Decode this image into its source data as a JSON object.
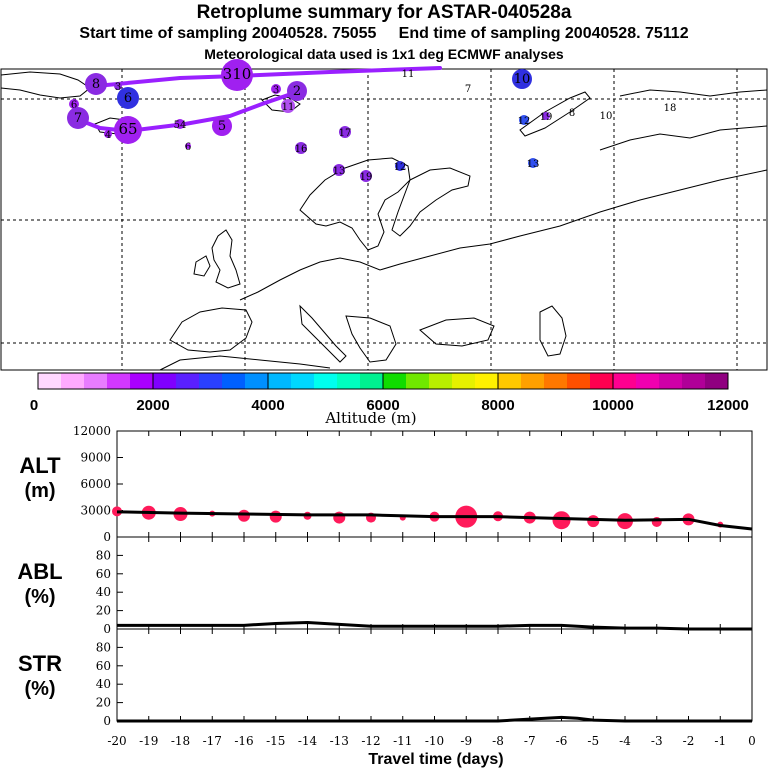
{
  "header": {
    "title": "Retroplume summary for ASTAR-040528a",
    "sampling": "Start time of sampling 20040528. 75055     End time of sampling 20040528. 75112",
    "meteo": "Meteorological data used is 1x1 deg ECMWF analyses"
  },
  "colorbar": {
    "label": "Altitude (m)",
    "ticks": [
      "0",
      "2000",
      "4000",
      "6000",
      "8000",
      "10000",
      "12000"
    ],
    "colors": [
      "#ffd8ff",
      "#ffaaff",
      "#e87cff",
      "#d238ff",
      "#aa00ff",
      "#8000ff",
      "#5a20ff",
      "#2a40ff",
      "#0060ff",
      "#0090ff",
      "#00b8ff",
      "#00d8ff",
      "#00ffee",
      "#00ffc0",
      "#00f090",
      "#10dc00",
      "#70e800",
      "#b8ef00",
      "#e6f000",
      "#fff000",
      "#ffc800",
      "#ffa000",
      "#ff7800",
      "#ff5000",
      "#ff0050",
      "#ff0090",
      "#f000b0",
      "#d000a8",
      "#b00098",
      "#900080"
    ]
  },
  "map": {
    "track_color": "#9a20ff",
    "points": [
      {
        "label": "8",
        "size": 11,
        "color": "#8a2be2"
      },
      {
        "label": "3",
        "size": 4,
        "color": "#8a2be2"
      },
      {
        "label": "6",
        "size": 11,
        "color": "#3030e0"
      },
      {
        "label": "310",
        "size": 16,
        "color": "#a020f0"
      },
      {
        "label": "11",
        "size": 0,
        "color": "#000000"
      },
      {
        "label": "10",
        "size": 10,
        "color": "#3030e0"
      },
      {
        "label": "7",
        "size": 0,
        "color": "#000000"
      },
      {
        "label": "6",
        "size": 5,
        "color": "#a020f0"
      },
      {
        "label": "4",
        "size": 4,
        "color": "#a020f0"
      },
      {
        "label": "7",
        "size": 11,
        "color": "#8a2be2"
      },
      {
        "label": "65",
        "size": 14,
        "color": "#a020f0"
      },
      {
        "label": "54",
        "size": 5,
        "color": "#a020f0"
      },
      {
        "label": "5",
        "size": 10,
        "color": "#a020f0"
      },
      {
        "label": "2",
        "size": 10,
        "color": "#8a2be2"
      },
      {
        "label": "3",
        "size": 5,
        "color": "#a020f0"
      },
      {
        "label": "11",
        "size": 7,
        "color": "#b050f0"
      },
      {
        "label": "17",
        "size": 6,
        "color": "#8a2be2"
      },
      {
        "label": "16",
        "size": 6,
        "color": "#8a2be2"
      },
      {
        "label": "13",
        "size": 6,
        "color": "#8a2be2"
      },
      {
        "label": "19",
        "size": 6,
        "color": "#8a2be2"
      },
      {
        "label": "12",
        "size": 5,
        "color": "#3030e0"
      },
      {
        "label": "13",
        "size": 5,
        "color": "#3050f0"
      },
      {
        "label": "8",
        "size": 0,
        "color": "#000000"
      },
      {
        "label": "10",
        "size": 0,
        "color": "#000000"
      },
      {
        "label": "18",
        "size": 0,
        "color": "#000000"
      },
      {
        "label": "12",
        "size": 5,
        "color": "#3050f0"
      },
      {
        "label": "19",
        "size": 4,
        "color": "#8a2be2"
      },
      {
        "label": "6",
        "size": 3,
        "color": "#a020f0"
      }
    ]
  },
  "chart_data": [
    {
      "type": "scatter",
      "title": "ALT (m)",
      "ylabel_line1": "ALT",
      "ylabel_line2": "(m)",
      "xlabel": "Travel time (days)",
      "x": [
        -20,
        -19,
        -18,
        -17,
        -16,
        -15,
        -14,
        -13,
        -12,
        -11,
        -10,
        -9,
        -8,
        -7,
        -6,
        -5,
        -4,
        -3,
        -2,
        -1
      ],
      "values": [
        2900,
        2750,
        2600,
        2650,
        2400,
        2300,
        2400,
        2200,
        2200,
        2200,
        2300,
        2300,
        2350,
        2200,
        1900,
        1800,
        1800,
        1700,
        2000,
        1400
      ],
      "sizes": [
        5,
        7,
        7,
        3,
        6,
        6,
        4,
        6,
        5,
        3,
        5,
        11,
        5,
        6,
        9,
        6,
        8,
        5,
        6,
        3
      ],
      "mean_line": {
        "x": [
          -20,
          -18,
          -16,
          -14,
          -12,
          -10,
          -8,
          -6,
          -4,
          -2,
          -1,
          0
        ],
        "values": [
          2850,
          2700,
          2600,
          2500,
          2500,
          2300,
          2300,
          2100,
          1900,
          2000,
          1300,
          900
        ]
      },
      "yticks": [
        "0",
        "3000",
        "6000",
        "9000",
        "12000"
      ],
      "ylim": [
        0,
        12000
      ],
      "xlim": [
        -20,
        0
      ],
      "marker_color": "#ff1a5a"
    },
    {
      "type": "line",
      "title": "ABL (%)",
      "ylabel_line1": "ABL",
      "ylabel_line2": "(%)",
      "x": [
        -20,
        -18,
        -16,
        -15,
        -14,
        -13,
        -12,
        -10,
        -8,
        -7,
        -6,
        -5,
        -4,
        -3,
        -2,
        -1,
        0
      ],
      "values": [
        4,
        4,
        4,
        6,
        7,
        5,
        3,
        3,
        3,
        4,
        4,
        2,
        1,
        1,
        0,
        0,
        0
      ],
      "yticks": [
        "0",
        "20",
        "40",
        "60",
        "80"
      ],
      "ylim": [
        0,
        100
      ],
      "xlim": [
        -20,
        0
      ]
    },
    {
      "type": "line",
      "title": "STR (%)",
      "ylabel_line1": "STR",
      "ylabel_line2": "(%)",
      "x": [
        -20,
        -10,
        -8,
        -7,
        -6.5,
        -6,
        -5.5,
        -5,
        -4,
        0
      ],
      "values": [
        0,
        0,
        0,
        2,
        3,
        4,
        3,
        1,
        0,
        0
      ],
      "yticks": [
        "0",
        "20",
        "40",
        "60",
        "80"
      ],
      "ylim": [
        0,
        100
      ],
      "xlim": [
        -20,
        0
      ]
    }
  ],
  "xaxis": {
    "ticks": [
      "-20",
      "-19",
      "-18",
      "-17",
      "-16",
      "-15",
      "-14",
      "-13",
      "-12",
      "-11",
      "-10",
      "-9",
      "-8",
      "-7",
      "-6",
      "-5",
      "-4",
      "-3",
      "-2",
      "-1",
      "0"
    ],
    "label": "Travel time (days)"
  }
}
